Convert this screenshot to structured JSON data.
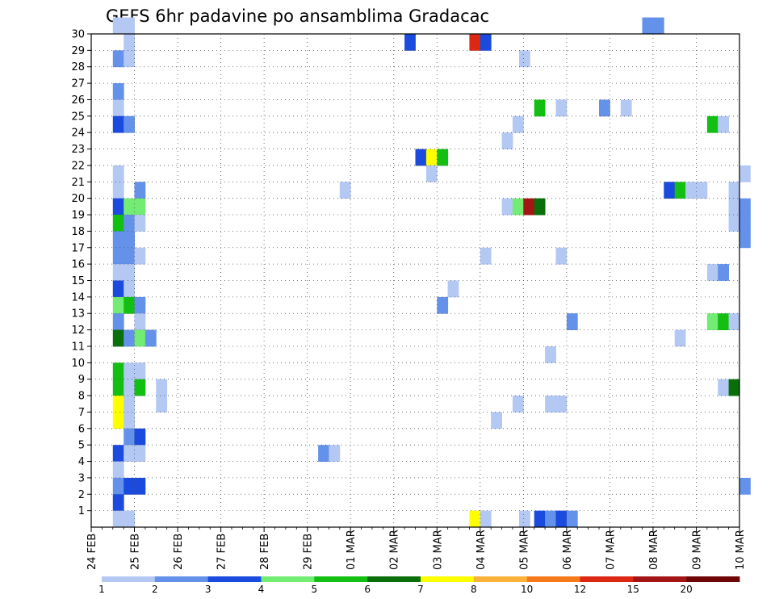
{
  "chart_data": {
    "type": "heatmap",
    "title": "GEFS 6hr padavine po ansamblima Gradacac",
    "x_tick_labels": [
      "24 FEB",
      "25 FEB",
      "26 FEB",
      "27 FEB",
      "28 FEB",
      "29 FEB",
      "01 MAR",
      "02 MAR",
      "03 MAR",
      "04 MAR",
      "05 MAR",
      "06 MAR",
      "07 MAR",
      "08 MAR",
      "09 MAR",
      "10 MAR"
    ],
    "y_tick_labels": [
      "1",
      "2",
      "3",
      "4",
      "5",
      "6",
      "7",
      "8",
      "9",
      "10",
      "11",
      "12",
      "13",
      "14",
      "15",
      "16",
      "17",
      "18",
      "19",
      "20",
      "21",
      "22",
      "23",
      "24",
      "25",
      "26",
      "27",
      "28",
      "29",
      "30"
    ],
    "xlim": [
      "24 FEB 00Z",
      "10 MAR 00Z"
    ],
    "ylim": [
      0,
      30
    ],
    "grid": true,
    "legend": {
      "placement": "bottom",
      "labels": [
        "1",
        "2",
        "3",
        "4",
        "5",
        "6",
        "7",
        "8",
        "10",
        "12",
        "15",
        "20"
      ],
      "colors": [
        "#b4c8f4",
        "#6491ea",
        "#1a4ade",
        "#72ec72",
        "#14bf14",
        "#0a6e0a",
        "#ffff00",
        "#fbb23a",
        "#f77a1a",
        "#dc2812",
        "#a41616",
        "#6e0606"
      ]
    },
    "cells_description": "each cell = [day offset from 24 FEB 00Z (6-hour steps of 0.25), ensemble member (0 = bottom row), legend bin index 0-11]",
    "cells": [
      [
        0.5,
        30,
        0
      ],
      [
        0.75,
        30,
        0
      ],
      [
        0.75,
        29,
        0
      ],
      [
        0.5,
        28,
        1
      ],
      [
        0.75,
        28,
        0
      ],
      [
        0.5,
        26,
        1
      ],
      [
        0.5,
        25,
        0
      ],
      [
        0.5,
        24,
        2
      ],
      [
        0.75,
        24,
        1
      ],
      [
        0.5,
        21,
        0
      ],
      [
        0.5,
        20,
        0
      ],
      [
        1.0,
        20,
        1
      ],
      [
        0.5,
        19,
        2
      ],
      [
        0.75,
        19,
        3
      ],
      [
        1.0,
        19,
        3
      ],
      [
        0.5,
        18,
        4
      ],
      [
        0.75,
        18,
        1
      ],
      [
        1.0,
        18,
        0
      ],
      [
        0.5,
        17,
        1
      ],
      [
        0.75,
        17,
        1
      ],
      [
        0.5,
        16,
        1
      ],
      [
        0.75,
        16,
        1
      ],
      [
        1.0,
        16,
        0
      ],
      [
        0.5,
        15,
        0
      ],
      [
        0.75,
        15,
        0
      ],
      [
        0.5,
        14,
        2
      ],
      [
        0.75,
        14,
        0
      ],
      [
        0.5,
        13,
        3
      ],
      [
        0.75,
        13,
        4
      ],
      [
        1.0,
        13,
        1
      ],
      [
        0.5,
        12,
        1
      ],
      [
        1.0,
        12,
        0
      ],
      [
        0.5,
        11,
        5
      ],
      [
        0.75,
        11,
        1
      ],
      [
        1.0,
        11,
        3
      ],
      [
        1.25,
        11,
        1
      ],
      [
        0.5,
        9,
        4
      ],
      [
        0.75,
        9,
        0
      ],
      [
        1.0,
        9,
        0
      ],
      [
        0.5,
        8,
        4
      ],
      [
        0.75,
        8,
        0
      ],
      [
        1.0,
        8,
        4
      ],
      [
        1.5,
        8,
        0
      ],
      [
        0.5,
        7,
        6
      ],
      [
        0.75,
        7,
        0
      ],
      [
        1.5,
        7,
        0
      ],
      [
        0.5,
        6,
        6
      ],
      [
        0.75,
        6,
        0
      ],
      [
        0.75,
        5,
        1
      ],
      [
        1.0,
        5,
        2
      ],
      [
        0.5,
        4,
        2
      ],
      [
        0.75,
        4,
        0
      ],
      [
        1.0,
        4,
        0
      ],
      [
        0.5,
        3,
        0
      ],
      [
        0.5,
        2,
        1
      ],
      [
        0.75,
        2,
        2
      ],
      [
        1.0,
        2,
        2
      ],
      [
        0.5,
        1,
        2
      ],
      [
        0.5,
        0,
        0
      ],
      [
        0.75,
        0,
        0
      ],
      [
        5.25,
        4,
        1
      ],
      [
        5.5,
        4,
        0
      ],
      [
        5.75,
        20,
        0
      ],
      [
        7.25,
        29,
        2
      ],
      [
        7.5,
        22,
        2
      ],
      [
        7.75,
        22,
        6
      ],
      [
        8.0,
        22,
        4
      ],
      [
        7.75,
        21,
        0
      ],
      [
        8.25,
        14,
        0
      ],
      [
        8.0,
        13,
        1
      ],
      [
        8.75,
        29,
        9
      ],
      [
        9.0,
        29,
        2
      ],
      [
        8.75,
        0,
        6
      ],
      [
        9.0,
        0,
        0
      ],
      [
        9.0,
        16,
        0
      ],
      [
        9.25,
        6,
        0
      ],
      [
        9.5,
        23,
        0
      ],
      [
        9.75,
        24,
        0
      ],
      [
        9.5,
        19,
        0
      ],
      [
        9.75,
        19,
        3
      ],
      [
        10.0,
        19,
        10
      ],
      [
        10.25,
        19,
        5
      ],
      [
        9.75,
        7,
        0
      ],
      [
        9.9,
        28,
        0
      ],
      [
        10.25,
        25,
        4
      ],
      [
        10.5,
        10,
        0
      ],
      [
        10.75,
        25,
        0
      ],
      [
        10.75,
        16,
        0
      ],
      [
        10.5,
        7,
        0
      ],
      [
        10.75,
        7,
        0
      ],
      [
        9.9,
        0,
        0
      ],
      [
        10.25,
        0,
        2
      ],
      [
        10.5,
        0,
        1
      ],
      [
        10.75,
        0,
        2
      ],
      [
        11.0,
        0,
        1
      ],
      [
        11.0,
        12,
        1
      ],
      [
        11.75,
        25,
        1
      ],
      [
        12.25,
        25,
        0
      ],
      [
        12.75,
        30,
        1
      ],
      [
        13.0,
        30,
        1
      ],
      [
        13.25,
        20,
        2
      ],
      [
        13.5,
        20,
        4
      ],
      [
        13.5,
        11,
        0
      ],
      [
        13.75,
        20,
        0
      ],
      [
        14.0,
        20,
        0
      ],
      [
        14.25,
        24,
        4
      ],
      [
        14.5,
        24,
        0
      ],
      [
        14.25,
        15,
        0
      ],
      [
        14.5,
        15,
        1
      ],
      [
        14.25,
        12,
        3
      ],
      [
        14.5,
        12,
        4
      ],
      [
        14.75,
        12,
        0
      ],
      [
        14.5,
        8,
        0
      ],
      [
        14.75,
        8,
        5
      ],
      [
        14.75,
        20,
        0
      ],
      [
        14.75,
        19,
        0
      ],
      [
        15.0,
        19,
        1
      ],
      [
        14.75,
        18,
        0
      ],
      [
        15.0,
        18,
        1
      ],
      [
        15.0,
        21,
        0
      ],
      [
        15.0,
        17,
        1
      ],
      [
        15.0,
        2,
        1
      ]
    ]
  }
}
